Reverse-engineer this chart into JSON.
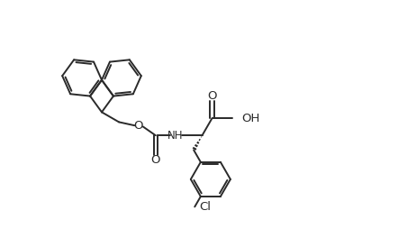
{
  "background": "#ffffff",
  "line_color": "#2a2a2a",
  "line_width": 1.4,
  "font_size": 8.5,
  "fig_width": 4.42,
  "fig_height": 2.64,
  "dpi": 100,
  "xlim": [
    -4.8,
    5.2
  ],
  "ylim": [
    -3.0,
    3.2
  ]
}
